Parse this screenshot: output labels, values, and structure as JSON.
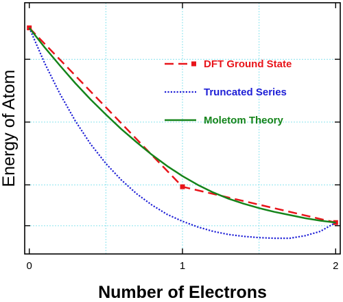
{
  "chart_data": {
    "type": "line",
    "xlabel": "Number of Electrons",
    "ylabel": "Energy of Atom",
    "xlim": [
      -0.03,
      2.03
    ],
    "ylim": [
      -0.1,
      3.9
    ],
    "x_ticks": [
      0,
      1,
      2
    ],
    "x_tick_labels": [
      "0",
      "1",
      "2"
    ],
    "y_ticks": [
      0.35,
      1.0,
      2.0,
      3.0
    ],
    "y_tick_labels": [
      "",
      "",
      "",
      ""
    ],
    "grid": true,
    "grid_color": "#88e3ee",
    "legend_position": "upper-right",
    "series": [
      {
        "name": "DFT Ground State",
        "color": "#e8141a",
        "style": "dashed",
        "marker": "square",
        "x": [
          0,
          1,
          2
        ],
        "y": [
          3.5,
          0.97,
          0.4
        ]
      },
      {
        "name": "Truncated Series",
        "color": "#1d1ed6",
        "style": "dotted",
        "marker": "none",
        "x": [
          0,
          0.1,
          0.2,
          0.3,
          0.4,
          0.5,
          0.6,
          0.7,
          0.8,
          0.9,
          1.0,
          1.1,
          1.2,
          1.3,
          1.4,
          1.5,
          1.6,
          1.7,
          1.8,
          1.9,
          2.0
        ],
        "y": [
          3.5,
          2.94,
          2.45,
          2.02,
          1.65,
          1.34,
          1.08,
          0.86,
          0.68,
          0.53,
          0.42,
          0.33,
          0.26,
          0.21,
          0.18,
          0.16,
          0.15,
          0.15,
          0.19,
          0.26,
          0.4
        ]
      },
      {
        "name": "Moletom Theory",
        "color": "#14841a",
        "style": "solid",
        "marker": "none",
        "x": [
          0,
          0.1,
          0.2,
          0.3,
          0.4,
          0.5,
          0.6,
          0.7,
          0.8,
          0.9,
          1.0,
          1.1,
          1.2,
          1.3,
          1.4,
          1.5,
          1.6,
          1.7,
          1.8,
          1.9,
          2.0
        ],
        "y": [
          3.5,
          3.19,
          2.9,
          2.62,
          2.36,
          2.12,
          1.89,
          1.68,
          1.48,
          1.3,
          1.14,
          1.0,
          0.88,
          0.78,
          0.7,
          0.63,
          0.57,
          0.52,
          0.47,
          0.43,
          0.4
        ]
      }
    ]
  }
}
